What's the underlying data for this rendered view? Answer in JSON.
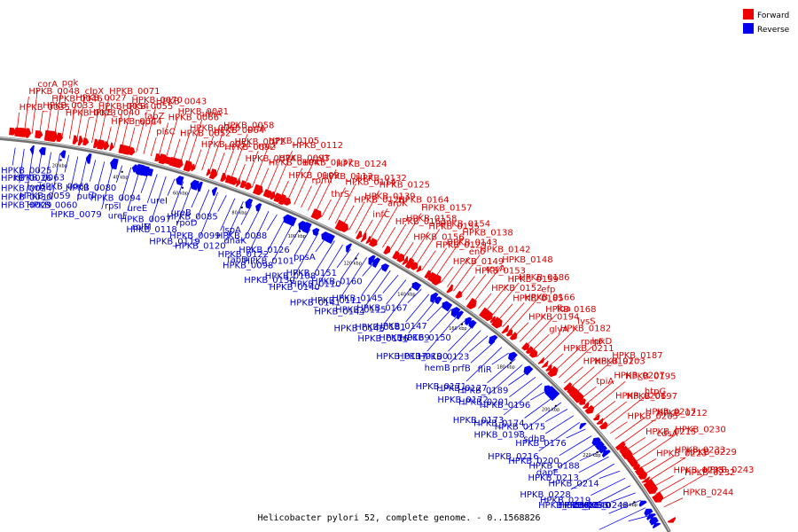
{
  "caption": "Helicobacter pylori 52, complete genome. - 0..1568826",
  "legend": {
    "forward": {
      "label": "Forward",
      "color": "#ee0000"
    },
    "reverse": {
      "label": "Reverse",
      "color": "#0000ee"
    }
  },
  "kbp_ticks": [
    "20 kbp",
    "40 kbp",
    "60 kbp",
    "80 kbp",
    "100 kbp",
    "120 kbp",
    "140 kbp",
    "160 kbp",
    "180 kbp",
    "200 kbp",
    "220 kbp",
    "240 kbp"
  ],
  "forward_labels": [
    "HPKB_0035",
    "HPKB_0048",
    "corA",
    "HPKB_0033",
    "HPKB_0046",
    "pgk",
    "HPKB_0073",
    "HPKB_0027",
    "clpX",
    "HPKB_0040",
    "HPKB_0054",
    "HPKB_0071",
    "HPKB_0044",
    "HPKB_0055",
    "HPKB_0070",
    "nspC",
    "fabZ",
    "HPKB_0043",
    "plsC",
    "HPKB_0066",
    "HPKB_0031",
    "HPKB_0052",
    "HPKB_0065",
    "ubiA",
    "HPKB_0051",
    "HPKB_0064",
    "HPKB_0058",
    "HPKB_0092",
    "HPKB_0072",
    "prfA",
    "HPKB_0074",
    "rpsT",
    "HPKB_0105",
    "HPKB_0104",
    "HPKB_0093",
    "HPKB_0112",
    "HPKB_0109",
    "HPKB_0137",
    "rplT",
    "rpmI",
    "HPKB_0113",
    "HPKB_0124",
    "thrS",
    "HPKB_0114",
    "HPKB_0132",
    "HPKB_0128",
    "HPKB_0139",
    "HPKB_0125",
    "infC",
    "aroK",
    "HPKB_0164",
    "HPKB_0163",
    "HPKB_0158",
    "HPKB_0157",
    "HPKB_0156",
    "HPKB_0155",
    "HPKB_0154",
    "HPKB_0129",
    "HPKB_0143",
    "HPKB_0138",
    "HPKB_0149",
    "eno",
    "HPKB_0142",
    "HPKB_0153",
    "recA",
    "HPKB_0148",
    "HPKB_0152",
    "HPKB_0159",
    "HPKB_0186",
    "HPKB_0185",
    "HPKB_0166",
    "efp",
    "HPKB_0194",
    "HPKB_0168",
    "fba",
    "glyA",
    "HPKB_0182",
    "lysS",
    "HPKB_0211",
    "rpmF",
    "lpxD",
    "HPKB_0191",
    "HPKB_0203",
    "HPKB_0187",
    "tpiA",
    "HPKB_0207",
    "HPKB_0195",
    "HPKB_0206",
    "HPKB_0197",
    "htpG",
    "HPKB_0205",
    "HPKB_0217",
    "HPKB_0212",
    "HPKB_0215",
    "cdsA",
    "HPKB_0230",
    "HPKB_0223",
    "HPKB_0233",
    "HPKB_0229",
    "HPKB_0225",
    "HPKB_0232",
    "HPKB_0243",
    "HPKB_0244"
  ],
  "reverse_labels": [
    "HPKB_0025",
    "HPKB_0024",
    "HPKB_0030",
    "HPKB_0026",
    "tyrA",
    "HPKB_0029",
    "HPKB_0063",
    "HPKB_0059",
    "HPKB_0060",
    "HPKB_0061",
    "putP",
    "HPKB_0079",
    "HPKB_0080",
    "rpsI",
    "ureF",
    "HPKB_0094",
    "ureE",
    "rplM",
    "ureI",
    "HPKB_0097",
    "HPKB_0118",
    "ureB",
    "rpoD",
    "HPKB_0119",
    "HPKB_0085",
    "HPKB_0099",
    "HPKB_0120",
    "lspA",
    "dnaK",
    "fabD",
    "HPKB_0088",
    "HPKB_0122",
    "HPKB_0098",
    "HPKB_0126",
    "HPKB_0101",
    "HPKB_0130",
    "ppsA",
    "HPKB_0108",
    "HPKB_0140",
    "HPKB_0151",
    "HPKB_0110",
    "HPKB_0141",
    "HPKB_0160",
    "HPKB_0111",
    "HPKB_0144",
    "HPKB_0145",
    "HPKB_0115",
    "HPKB_0146",
    "HPKB_0167",
    "HPKB_0181",
    "HPKB_0116",
    "HPKB_0147",
    "HPKB_0169",
    "HPKB_0117",
    "HPKB_0150",
    "HPKB_0190",
    "hemB",
    "HPKB_0123",
    "prfB",
    "HPKB_0171",
    "fliR",
    "HPKB_0127",
    "HPKB_0172",
    "HPKB_0189",
    "HPKB_0201",
    "HPKB_0173",
    "HPKB_0196",
    "HPKB_0174",
    "HPKB_0198",
    "HPKB_0175",
    "sdhB",
    "HPKB_0216",
    "HPKB_0176",
    "HPKB_0200",
    "dapE",
    "HPKB_0188",
    "HPKB_0213",
    "HPKB_0228",
    "HPKB_0214",
    "HPKB_0219",
    "HPKB_0236",
    "HPKB_0240",
    "HPKB_0235",
    "omp6",
    "HPKB_0248"
  ]
}
